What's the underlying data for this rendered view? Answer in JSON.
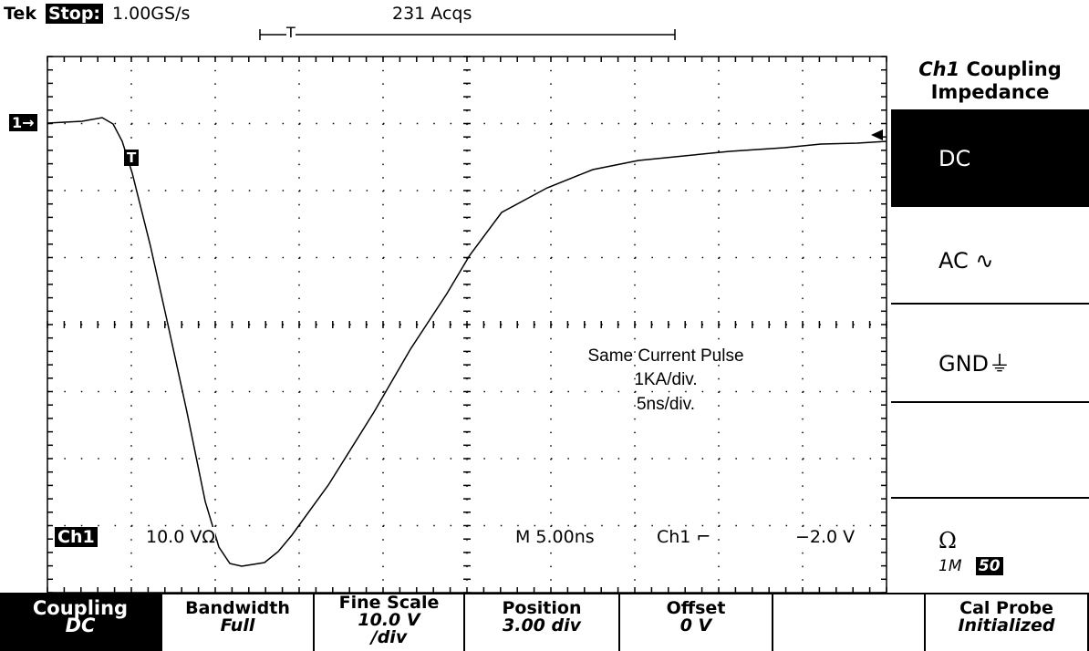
{
  "header": {
    "brand": "Tek",
    "status": "Stop:",
    "sample_rate": "1.00GS/s",
    "acquisitions": "231 Acqs",
    "trigger_marker": "T"
  },
  "markers": {
    "channel": "1→",
    "trigger": "T"
  },
  "readout": {
    "channel": "Ch1",
    "scale": "10.0 VΩ",
    "timebase": "M 5.00ns",
    "trigger_source": "Ch1 ⌐",
    "trigger_level": "−2.0 V"
  },
  "annotation": [
    "Same Current Pulse",
    "1KA/div.",
    "5ns/div."
  ],
  "side_menu": {
    "title_channel": "Ch1",
    "title_rest": "Coupling",
    "title_line2": "Impedance",
    "options": [
      "DC",
      "AC ∿",
      "GND⏚",
      ""
    ],
    "impedance": {
      "symbol": "Ω",
      "low": "1M",
      "high": "50"
    }
  },
  "bottom_menu": [
    {
      "label": "Coupling",
      "value": "DC"
    },
    {
      "label": "Bandwidth",
      "value": "Full"
    },
    {
      "label": "Fine Scale",
      "value": "10.0 V",
      "value2": "/div"
    },
    {
      "label": "Position",
      "value": "3.00 div"
    },
    {
      "label": "Offset",
      "value": "0 V"
    },
    {
      "label": "",
      "value": ""
    },
    {
      "label": "Cal Probe",
      "value": "Initialized"
    }
  ]
}
